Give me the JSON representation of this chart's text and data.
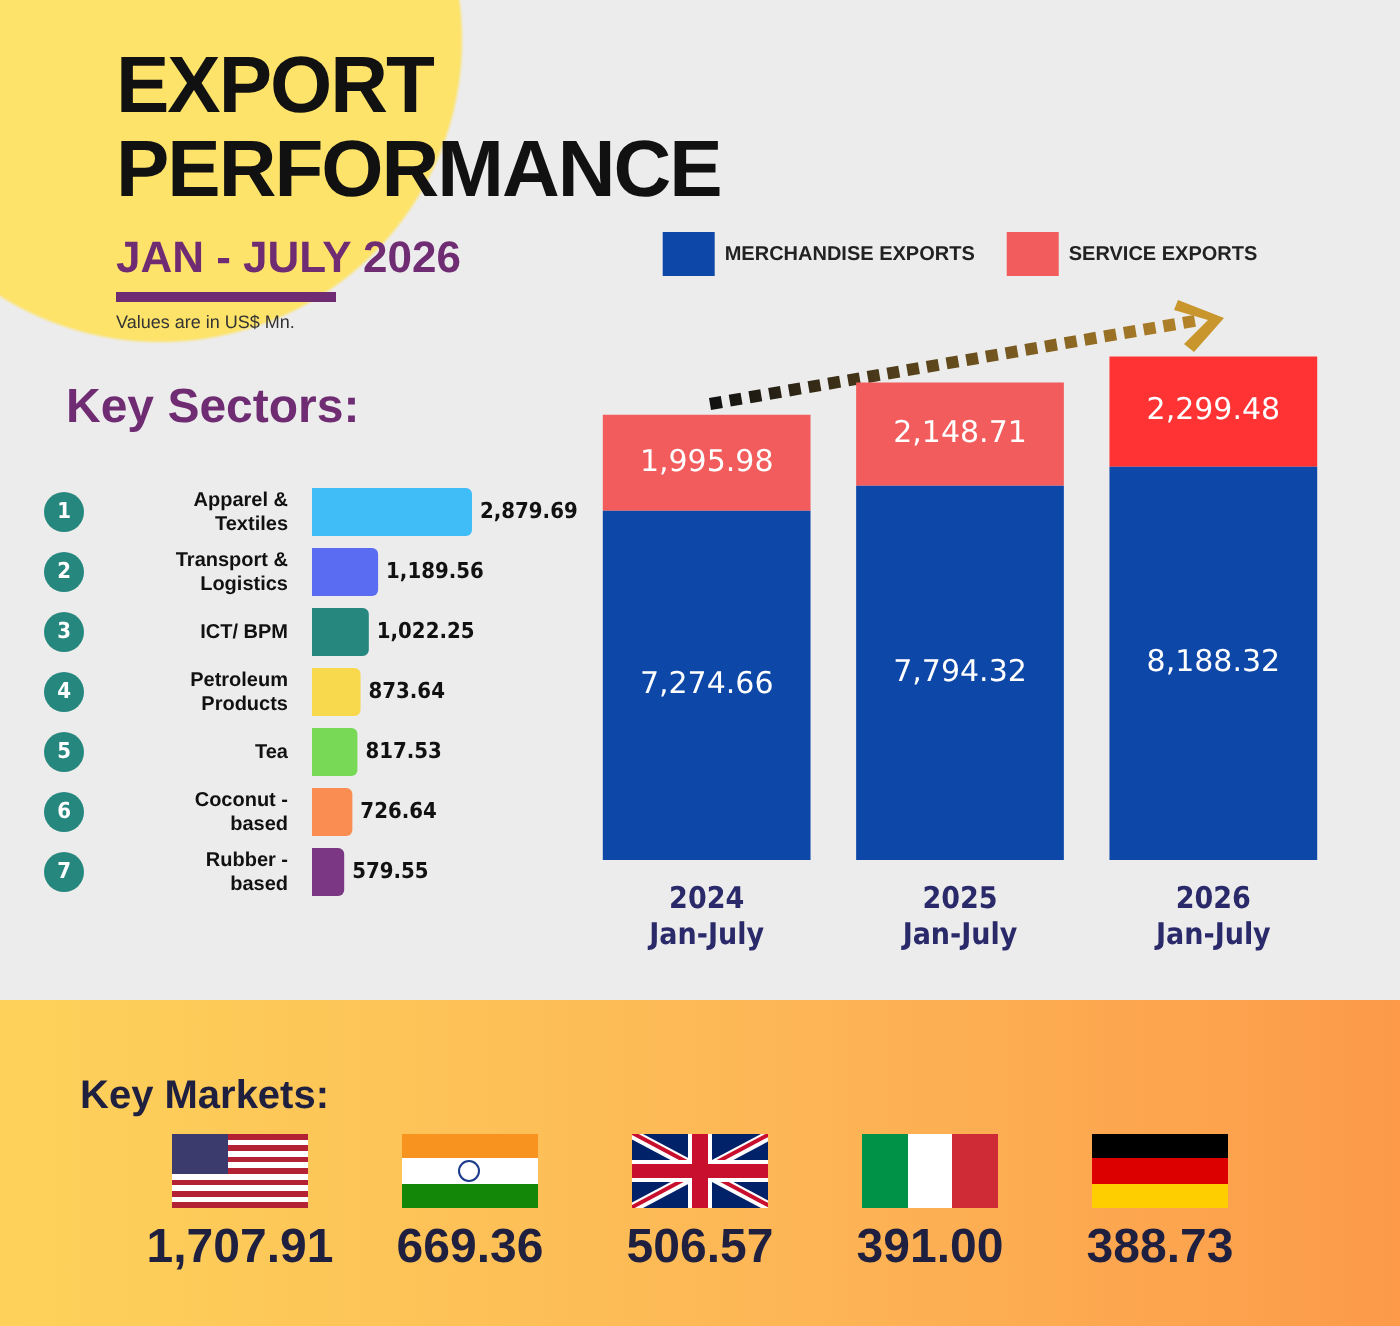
{
  "chart_data": [
    {
      "type": "bar",
      "title": "EXPORT PERFORMANCE",
      "subtitle": "JAN - JULY 2026",
      "annotations": [
        "Values are in US$ Mn."
      ],
      "categories": [
        "2024 Jan-July",
        "2025 Jan-July",
        "2026 Jan-July"
      ],
      "stacked": true,
      "legend": "top",
      "series": [
        {
          "name": "MERCHANDISE EXPORTS",
          "color": "#0d47a8",
          "values": [
            7274.66,
            7794.32,
            8188.32
          ],
          "value_labels": [
            "7,274.66",
            "7,794.32",
            "8,188.32"
          ]
        },
        {
          "name": "SERVICE EXPORTS",
          "color": "#f25c5c",
          "colors": [
            "#f25c5c",
            "#f25c5c",
            "#ff3333"
          ],
          "values": [
            1995.98,
            2148.71,
            2299.48
          ],
          "value_labels": [
            "1,995.98",
            "2,148.71",
            "2,299.48"
          ]
        }
      ]
    },
    {
      "type": "bar",
      "orientation": "horizontal",
      "title": "Key Sectors:",
      "categories": [
        "Apparel & Textiles",
        "Transport & Logistics",
        "ICT/ BPM",
        "Petroleum Products",
        "Tea",
        "Coconut - based",
        "Rubber - based"
      ],
      "colors": [
        "#40bdf7",
        "#5a6cf2",
        "#26877f",
        "#f8d84c",
        "#78d957",
        "#f98d52",
        "#7b3783"
      ],
      "values": [
        2879.69,
        1189.56,
        1022.25,
        873.64,
        817.53,
        726.64,
        579.55
      ],
      "value_labels": [
        "2,879.69",
        "1,189.56",
        "1,022.25",
        "873.64",
        "817.53",
        "726.64",
        "579.55"
      ],
      "annotations": [
        "1",
        "2",
        "3",
        "4",
        "5",
        "6",
        "7"
      ]
    },
    {
      "type": "other",
      "title": "Key Markets:",
      "categories": [
        null,
        null,
        null,
        null,
        null
      ],
      "value_labels": [
        "1,707.91",
        "669.36",
        "506.57",
        "391.00",
        "388.73"
      ]
    }
  ]
}
